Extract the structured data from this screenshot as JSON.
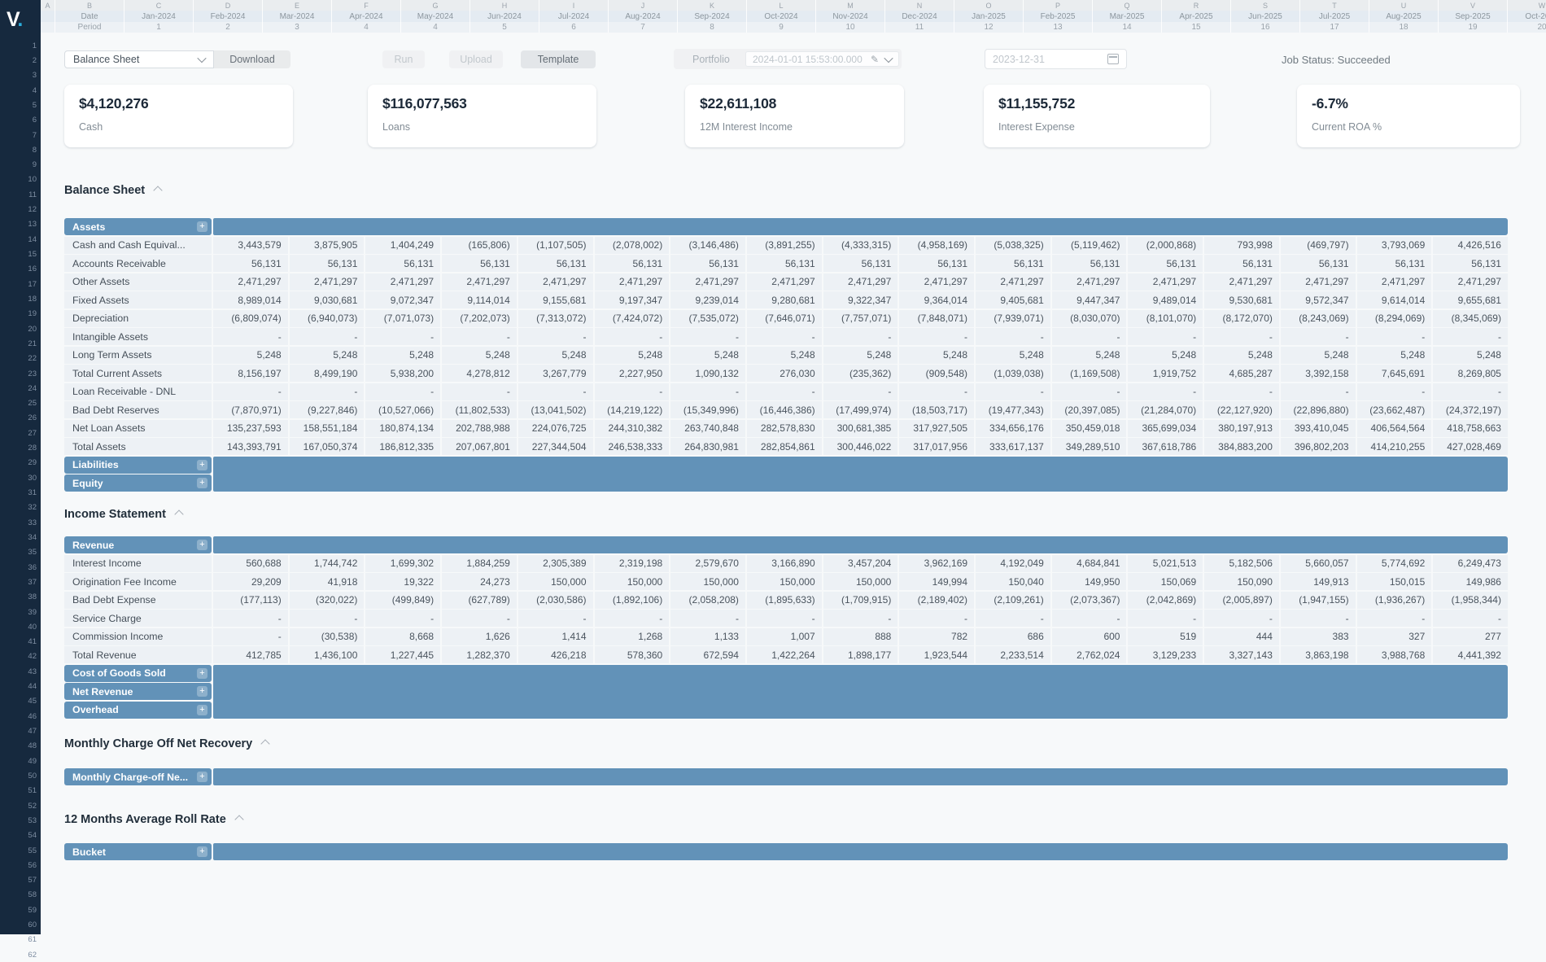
{
  "colors": {
    "accent_blue": "#6292B8",
    "sidebar_navy": "#16293E",
    "cell_bg": "#EDF1F5",
    "page_bg": "#F7F9FA",
    "logo_dot": "#2BAEDC"
  },
  "app": {
    "logo_text": "V",
    "logo_dot": "."
  },
  "spreadsheet": {
    "row_first": 1,
    "row_last": 62,
    "col_letters": [
      "A",
      "B",
      "C",
      "D",
      "E",
      "F",
      "G",
      "H",
      "I",
      "J",
      "K",
      "L",
      "M",
      "N",
      "O",
      "P",
      "Q",
      "R",
      "S",
      "T",
      "U",
      "V",
      "W"
    ],
    "date_row_label": "Date",
    "period_row_label": "Period",
    "dates": [
      "Jan-2024",
      "Feb-2024",
      "Mar-2024",
      "Apr-2024",
      "May-2024",
      "Jun-2024",
      "Jul-2024",
      "Aug-2024",
      "Sep-2024",
      "Oct-2024",
      "Nov-2024",
      "Dec-2024",
      "Jan-2025",
      "Feb-2025",
      "Mar-2025",
      "Apr-2025",
      "Jun-2025",
      "Jul-2025",
      "Aug-2025",
      "Sep-2025",
      "Oct-2025"
    ],
    "periods": [
      "1",
      "2",
      "3",
      "4",
      "4",
      "5",
      "6",
      "7",
      "8",
      "9",
      "10",
      "11",
      "12",
      "13",
      "14",
      "15",
      "16",
      "17",
      "18",
      "19",
      "20"
    ]
  },
  "toolbar": {
    "sheet_select_value": "Balance Sheet",
    "download_label": "Download",
    "run_label": "Run",
    "upload_label": "Upload",
    "template_label": "Template",
    "portfolio_label": "Portfolio",
    "portfolio_value": "2024-01-01 15:53:00.000",
    "pencil_icon": "✎",
    "as_of_date_value": "2023-12-31",
    "job_status": "Job Status: Succeeded"
  },
  "kpis": [
    {
      "value": "$4,120,276",
      "label": "Cash"
    },
    {
      "value": "$116,077,563",
      "label": "Loans"
    },
    {
      "value": "$22,611,108",
      "label": "12M Interest Income"
    },
    {
      "value": "$11,155,752",
      "label": "Interest Expense"
    },
    {
      "value": "-6.7%",
      "label": "Current ROA %"
    }
  ],
  "balance_sheet": {
    "title": "Balance Sheet",
    "group_headers_top": [
      "Assets"
    ],
    "rows": [
      {
        "label": "Cash and Cash Equival...",
        "values": [
          "3,443,579",
          "3,875,905",
          "1,404,249",
          "(165,806)",
          "(1,107,505)",
          "(2,078,002)",
          "(3,146,486)",
          "(3,891,255)",
          "(4,333,315)",
          "(4,958,169)",
          "(5,038,325)",
          "(5,119,462)",
          "(2,000,868)",
          "793,998",
          "(469,797)",
          "3,793,069",
          "4,426,516"
        ]
      },
      {
        "label": "Accounts Receivable",
        "values": [
          "56,131",
          "56,131",
          "56,131",
          "56,131",
          "56,131",
          "56,131",
          "56,131",
          "56,131",
          "56,131",
          "56,131",
          "56,131",
          "56,131",
          "56,131",
          "56,131",
          "56,131",
          "56,131",
          "56,131"
        ]
      },
      {
        "label": "Other Assets",
        "values": [
          "2,471,297",
          "2,471,297",
          "2,471,297",
          "2,471,297",
          "2,471,297",
          "2,471,297",
          "2,471,297",
          "2,471,297",
          "2,471,297",
          "2,471,297",
          "2,471,297",
          "2,471,297",
          "2,471,297",
          "2,471,297",
          "2,471,297",
          "2,471,297",
          "2,471,297"
        ]
      },
      {
        "label": "Fixed Assets",
        "values": [
          "8,989,014",
          "9,030,681",
          "9,072,347",
          "9,114,014",
          "9,155,681",
          "9,197,347",
          "9,239,014",
          "9,280,681",
          "9,322,347",
          "9,364,014",
          "9,405,681",
          "9,447,347",
          "9,489,014",
          "9,530,681",
          "9,572,347",
          "9,614,014",
          "9,655,681"
        ]
      },
      {
        "label": "Depreciation",
        "values": [
          "(6,809,074)",
          "(6,940,073)",
          "(7,071,073)",
          "(7,202,073)",
          "(7,313,072)",
          "(7,424,072)",
          "(7,535,072)",
          "(7,646,071)",
          "(7,757,071)",
          "(7,848,071)",
          "(7,939,071)",
          "(8,030,070)",
          "(8,101,070)",
          "(8,172,070)",
          "(8,243,069)",
          "(8,294,069)",
          "(8,345,069)"
        ]
      },
      {
        "label": "Intangible Assets",
        "values": [
          "-",
          "-",
          "-",
          "-",
          "-",
          "-",
          "-",
          "-",
          "-",
          "-",
          "-",
          "-",
          "-",
          "-",
          "-",
          "-",
          "-"
        ]
      },
      {
        "label": "Long Term Assets",
        "values": [
          "5,248",
          "5,248",
          "5,248",
          "5,248",
          "5,248",
          "5,248",
          "5,248",
          "5,248",
          "5,248",
          "5,248",
          "5,248",
          "5,248",
          "5,248",
          "5,248",
          "5,248",
          "5,248",
          "5,248"
        ]
      },
      {
        "label": "Total Current Assets",
        "values": [
          "8,156,197",
          "8,499,190",
          "5,938,200",
          "4,278,812",
          "3,267,779",
          "2,227,950",
          "1,090,132",
          "276,030",
          "(235,362)",
          "(909,548)",
          "(1,039,038)",
          "(1,169,508)",
          "1,919,752",
          "4,685,287",
          "3,392,158",
          "7,645,691",
          "8,269,805"
        ]
      },
      {
        "label": "Loan Receivable - DNL",
        "values": [
          "-",
          "-",
          "-",
          "-",
          "-",
          "-",
          "-",
          "-",
          "-",
          "-",
          "-",
          "-",
          "-",
          "-",
          "-",
          "-",
          "-"
        ]
      },
      {
        "label": "Bad Debt Reserves",
        "values": [
          "(7,870,971)",
          "(9,227,846)",
          "(10,527,066)",
          "(11,802,533)",
          "(13,041,502)",
          "(14,219,122)",
          "(15,349,996)",
          "(16,446,386)",
          "(17,499,974)",
          "(18,503,717)",
          "(19,477,343)",
          "(20,397,085)",
          "(21,284,070)",
          "(22,127,920)",
          "(22,896,880)",
          "(23,662,487)",
          "(24,372,197)"
        ]
      },
      {
        "label": "Net Loan Assets",
        "values": [
          "135,237,593",
          "158,551,184",
          "180,874,134",
          "202,788,988",
          "224,076,725",
          "244,310,382",
          "263,740,848",
          "282,578,830",
          "300,681,385",
          "317,927,505",
          "334,656,176",
          "350,459,018",
          "365,699,034",
          "380,197,913",
          "393,410,045",
          "406,564,564",
          "418,758,663"
        ]
      },
      {
        "label": "Total Assets",
        "values": [
          "143,393,791",
          "167,050,374",
          "186,812,335",
          "207,067,801",
          "227,344,504",
          "246,538,333",
          "264,830,981",
          "282,854,861",
          "300,446,022",
          "317,017,956",
          "333,617,137",
          "349,289,510",
          "367,618,786",
          "384,883,200",
          "396,802,203",
          "414,210,255",
          "427,028,469"
        ]
      }
    ],
    "group_headers_bottom": [
      "Liabilities",
      "Equity"
    ]
  },
  "income_statement": {
    "title": "Income Statement",
    "group_headers_top": [
      "Revenue"
    ],
    "rows": [
      {
        "label": "Interest Income",
        "values": [
          "560,688",
          "1,744,742",
          "1,699,302",
          "1,884,259",
          "2,305,389",
          "2,319,198",
          "2,579,670",
          "3,166,890",
          "3,457,204",
          "3,962,169",
          "4,192,049",
          "4,684,841",
          "5,021,513",
          "5,182,506",
          "5,660,057",
          "5,774,692",
          "6,249,473"
        ]
      },
      {
        "label": "Origination Fee Income",
        "values": [
          "29,209",
          "41,918",
          "19,322",
          "24,273",
          "150,000",
          "150,000",
          "150,000",
          "150,000",
          "150,000",
          "149,994",
          "150,040",
          "149,950",
          "150,069",
          "150,090",
          "149,913",
          "150,015",
          "149,986"
        ]
      },
      {
        "label": "Bad Debt Expense",
        "values": [
          "(177,113)",
          "(320,022)",
          "(499,849)",
          "(627,789)",
          "(2,030,586)",
          "(1,892,106)",
          "(2,058,208)",
          "(1,895,633)",
          "(1,709,915)",
          "(2,189,402)",
          "(2,109,261)",
          "(2,073,367)",
          "(2,042,869)",
          "(2,005,897)",
          "(1,947,155)",
          "(1,936,267)",
          "(1,958,344)"
        ]
      },
      {
        "label": "Service Charge",
        "values": [
          "-",
          "-",
          "-",
          "-",
          "-",
          "-",
          "-",
          "-",
          "-",
          "-",
          "-",
          "-",
          "-",
          "-",
          "-",
          "-",
          "-"
        ]
      },
      {
        "label": "Commission Income",
        "values": [
          "-",
          "(30,538)",
          "8,668",
          "1,626",
          "1,414",
          "1,268",
          "1,133",
          "1,007",
          "888",
          "782",
          "686",
          "600",
          "519",
          "444",
          "383",
          "327",
          "277"
        ]
      },
      {
        "label": "Total Revenue",
        "values": [
          "412,785",
          "1,436,100",
          "1,227,445",
          "1,282,370",
          "426,218",
          "578,360",
          "672,594",
          "1,422,264",
          "1,898,177",
          "1,923,544",
          "2,233,514",
          "2,762,024",
          "3,129,233",
          "3,327,143",
          "3,863,198",
          "3,988,768",
          "4,441,392"
        ]
      }
    ],
    "group_headers_bottom": [
      "Cost of Goods Sold",
      "Net Revenue",
      "Overhead"
    ]
  },
  "charge_off_section": {
    "title": "Monthly Charge Off Net Recovery",
    "bars": [
      "Monthly Charge-off Ne..."
    ]
  },
  "roll_rate_section": {
    "title": "12 Months Average Roll Rate",
    "bars": [
      "Bucket"
    ]
  }
}
